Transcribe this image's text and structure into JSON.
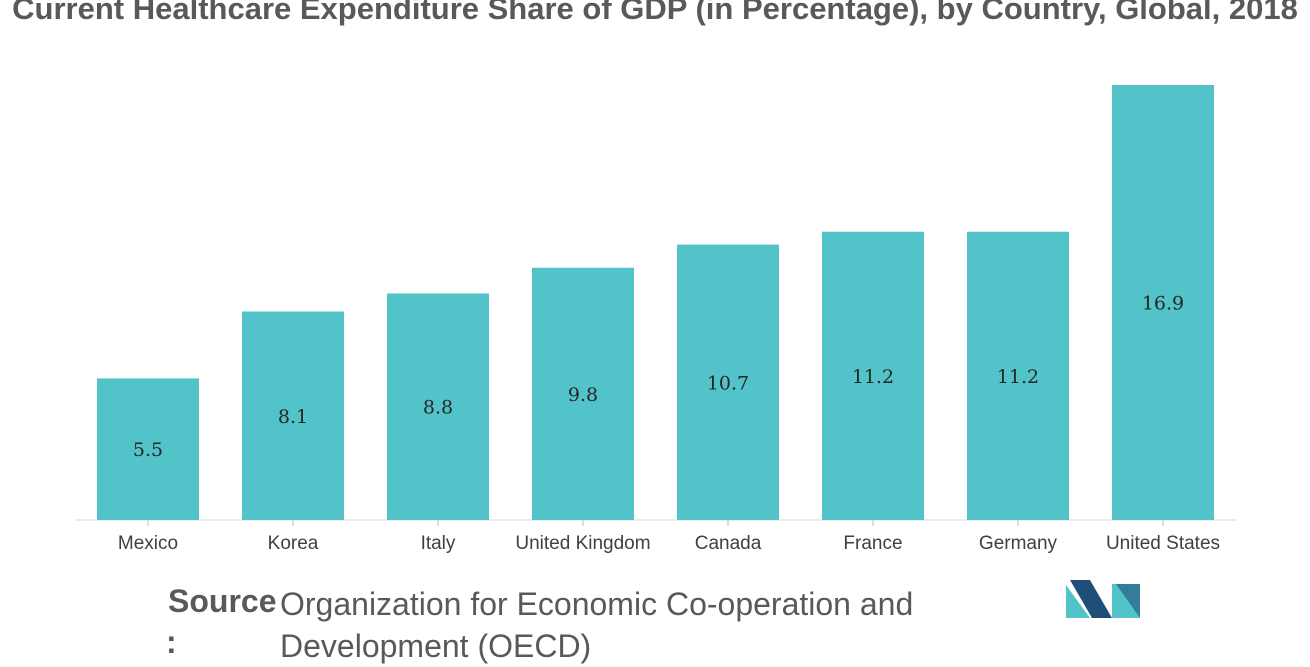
{
  "chart_data": {
    "type": "bar",
    "title": "Current Healthcare Expenditure Share of GDP (in Percentage), by Country, Global, 2018",
    "categories": [
      "Mexico",
      "Korea",
      "Italy",
      "United Kingdom",
      "Canada",
      "France",
      "Germany",
      "United States"
    ],
    "values": [
      5.5,
      8.1,
      8.8,
      9.8,
      10.7,
      11.2,
      11.2,
      16.9
    ],
    "xlabel": "",
    "ylabel": "",
    "ylim": [
      0,
      16.9
    ],
    "grid": false,
    "legend": "none",
    "bar_color": "#52c3c9"
  },
  "source": {
    "label": "Source",
    "colon": ":",
    "text": "Organization for Economic Co-operation and Development (OECD)"
  },
  "logo": {
    "icon": "mordor-logo-icon",
    "color_dark": "#1f4e79",
    "color_light": "#52c3c9"
  }
}
